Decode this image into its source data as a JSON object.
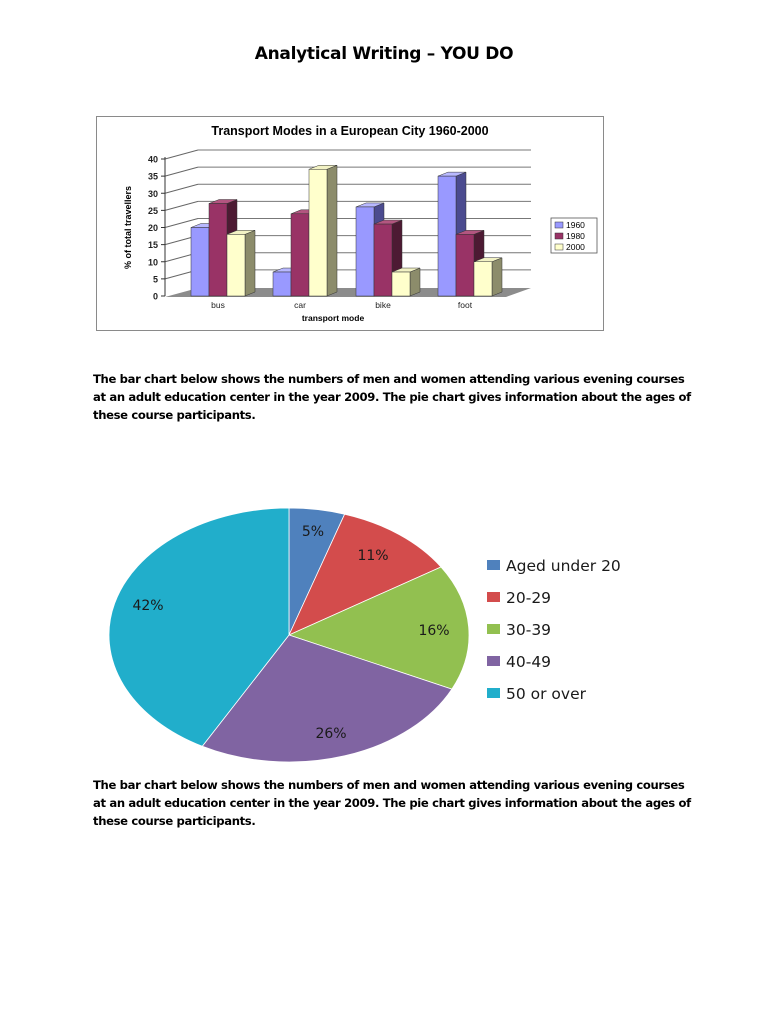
{
  "document": {
    "title": "Analytical Writing – YOU DO",
    "paragraphs": [
      "The bar chart below shows the numbers of men and women attending various evening courses at an adult education center in the year 2009. The pie chart gives information about the ages of these course participants.",
      "The bar chart below shows the numbers of men and women attending various evening courses at an adult education center in the year 2009. The pie chart gives information about the ages of these course participants."
    ]
  },
  "chart_data": [
    {
      "type": "bar",
      "style": "3d-clustered",
      "title": "Transport Modes in a European City 1960-2000",
      "xlabel": "transport mode",
      "ylabel": "% of total travellers",
      "categories": [
        "bus",
        "car",
        "bike",
        "foot"
      ],
      "series": [
        {
          "name": "1960",
          "values": [
            20,
            7,
            26,
            35
          ],
          "color": "#9999ff",
          "side": "#4b4b8f",
          "top": "#b8b8ff"
        },
        {
          "name": "1980",
          "values": [
            27,
            24,
            21,
            18
          ],
          "color": "#993366",
          "side": "#4d1a33",
          "top": "#b35580"
        },
        {
          "name": "2000",
          "values": [
            18,
            37,
            7,
            10
          ],
          "color": "#ffffcc",
          "side": "#8c8c6b",
          "top": "#f2f2c4"
        }
      ],
      "yticks": [
        0,
        5,
        10,
        15,
        20,
        25,
        30,
        35,
        40
      ],
      "ylim": [
        0,
        40
      ],
      "grid": true,
      "legend_position": "right"
    },
    {
      "type": "pie",
      "title": "",
      "categories": [
        "Aged under 20",
        "20-29",
        "30-39",
        "40-49",
        "50 or over"
      ],
      "values": [
        5,
        11,
        16,
        26,
        42
      ],
      "labels": [
        "5%",
        "11%",
        "16%",
        "26%",
        "42%"
      ],
      "colors": [
        "#4f81bd",
        "#d34c4c",
        "#92c050",
        "#8064a2",
        "#21aecb"
      ],
      "legend_position": "right"
    }
  ]
}
